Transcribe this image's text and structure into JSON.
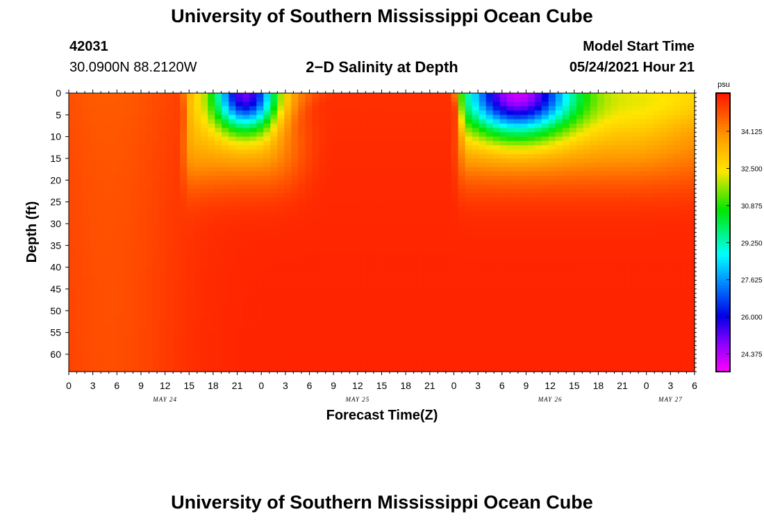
{
  "header": {
    "title": "University of Southern Mississippi Ocean Cube",
    "station_id": "42031",
    "station_coords": "30.0900N  88.2120W",
    "plot_title": "2−D Salinity at Depth",
    "model_start_label": "Model Start Time",
    "model_start_value": "05/24/2021 Hour 21"
  },
  "footer": {
    "title": "University of Southern Mississippi Ocean Cube"
  },
  "chart_data": {
    "type": "heatmap",
    "title": "2−D Salinity at Depth",
    "xlabel": "Forecast Time(Z)",
    "ylabel": "Depth (ft)",
    "x_ticks": [
      "0",
      "3",
      "6",
      "9",
      "12",
      "15",
      "18",
      "21",
      "0",
      "3",
      "6",
      "9",
      "12",
      "15",
      "18",
      "21",
      "0",
      "3",
      "6",
      "9",
      "12",
      "15",
      "18",
      "21",
      "0",
      "3",
      "6"
    ],
    "x_date_labels": [
      {
        "label": "MAY 24",
        "hour_index": 12
      },
      {
        "label": "MAY 25",
        "hour_index": 36
      },
      {
        "label": "MAY 26",
        "hour_index": 60
      },
      {
        "label": "MAY 27",
        "hour_index": 75
      }
    ],
    "xlim_hours": [
      0,
      78
    ],
    "y_ticks": [
      "0",
      "5",
      "10",
      "15",
      "20",
      "25",
      "30",
      "35",
      "40",
      "45",
      "50",
      "55",
      "60"
    ],
    "ylim_ft": [
      0,
      64
    ],
    "y_inverted": true,
    "colorbar": {
      "unit": "psu",
      "labels": [
        "34.125",
        "32.500",
        "30.875",
        "29.250",
        "27.625",
        "26.000",
        "24.375"
      ],
      "range": [
        23.6,
        35.8
      ]
    },
    "field_description": "salinity psu at depth vs forecast hour",
    "events": [
      {
        "start_hour": 14,
        "center_hour": 22,
        "end_hour": 32,
        "min_surface_psu": 25.5
      },
      {
        "start_hour": 48,
        "center_hour": 56,
        "end_hour": 78,
        "min_surface_psu": 24.5
      }
    ]
  }
}
